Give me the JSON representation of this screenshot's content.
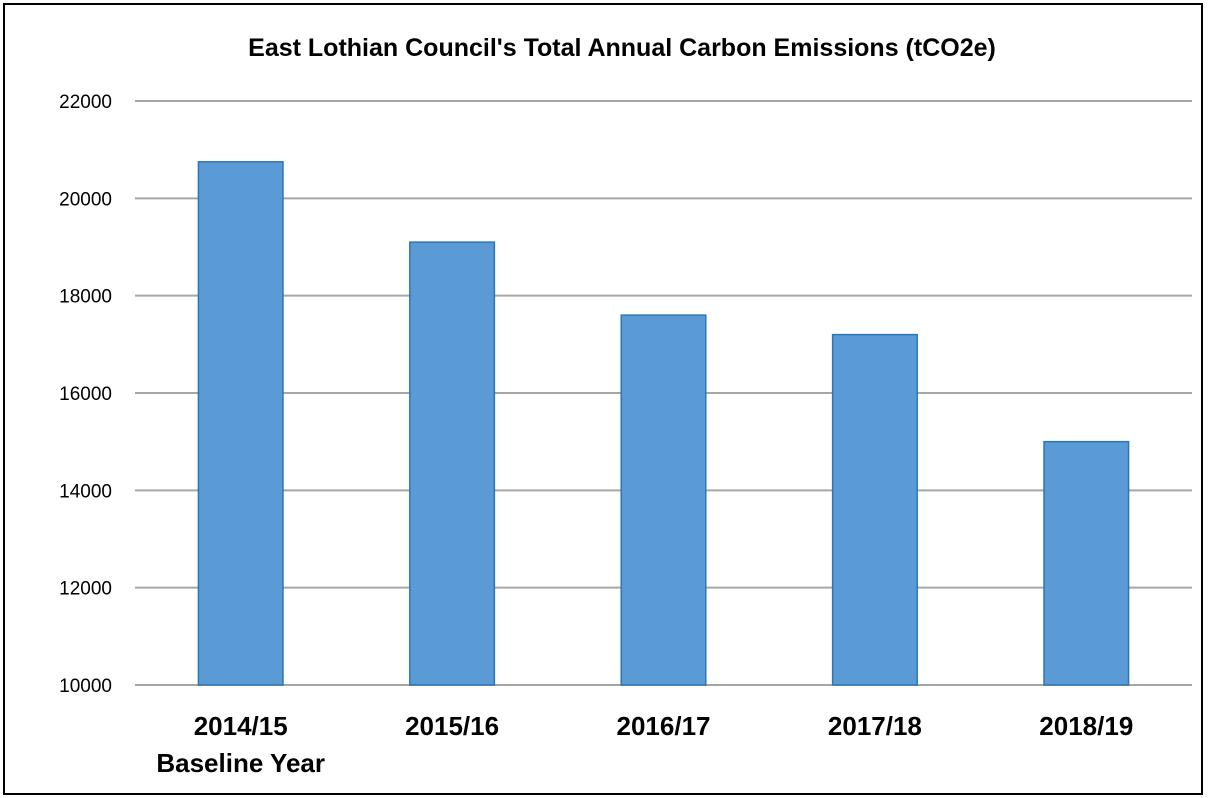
{
  "chart_data": {
    "type": "bar",
    "title": "East Lothian Council's Total Annual Carbon Emissions (tCO2e)",
    "categories": [
      [
        "2014/15",
        "Baseline Year"
      ],
      [
        "2015/16"
      ],
      [
        "2016/17"
      ],
      [
        "2017/18"
      ],
      [
        "2018/19"
      ]
    ],
    "values": [
      20750,
      19100,
      17600,
      17200,
      15000
    ],
    "ylim": [
      10000,
      22000
    ],
    "yticks": [
      "10000",
      "12000",
      "14000",
      "16000",
      "18000",
      "20000",
      "22000"
    ],
    "ytick_values": [
      10000,
      12000,
      14000,
      16000,
      18000,
      20000,
      22000
    ],
    "xlabel": "",
    "ylabel": "",
    "grid": true,
    "legend": "none",
    "bar_color": "#5b9bd5",
    "bar_edge_color": "#2e75b6",
    "grid_color": "#a6a6a6"
  }
}
